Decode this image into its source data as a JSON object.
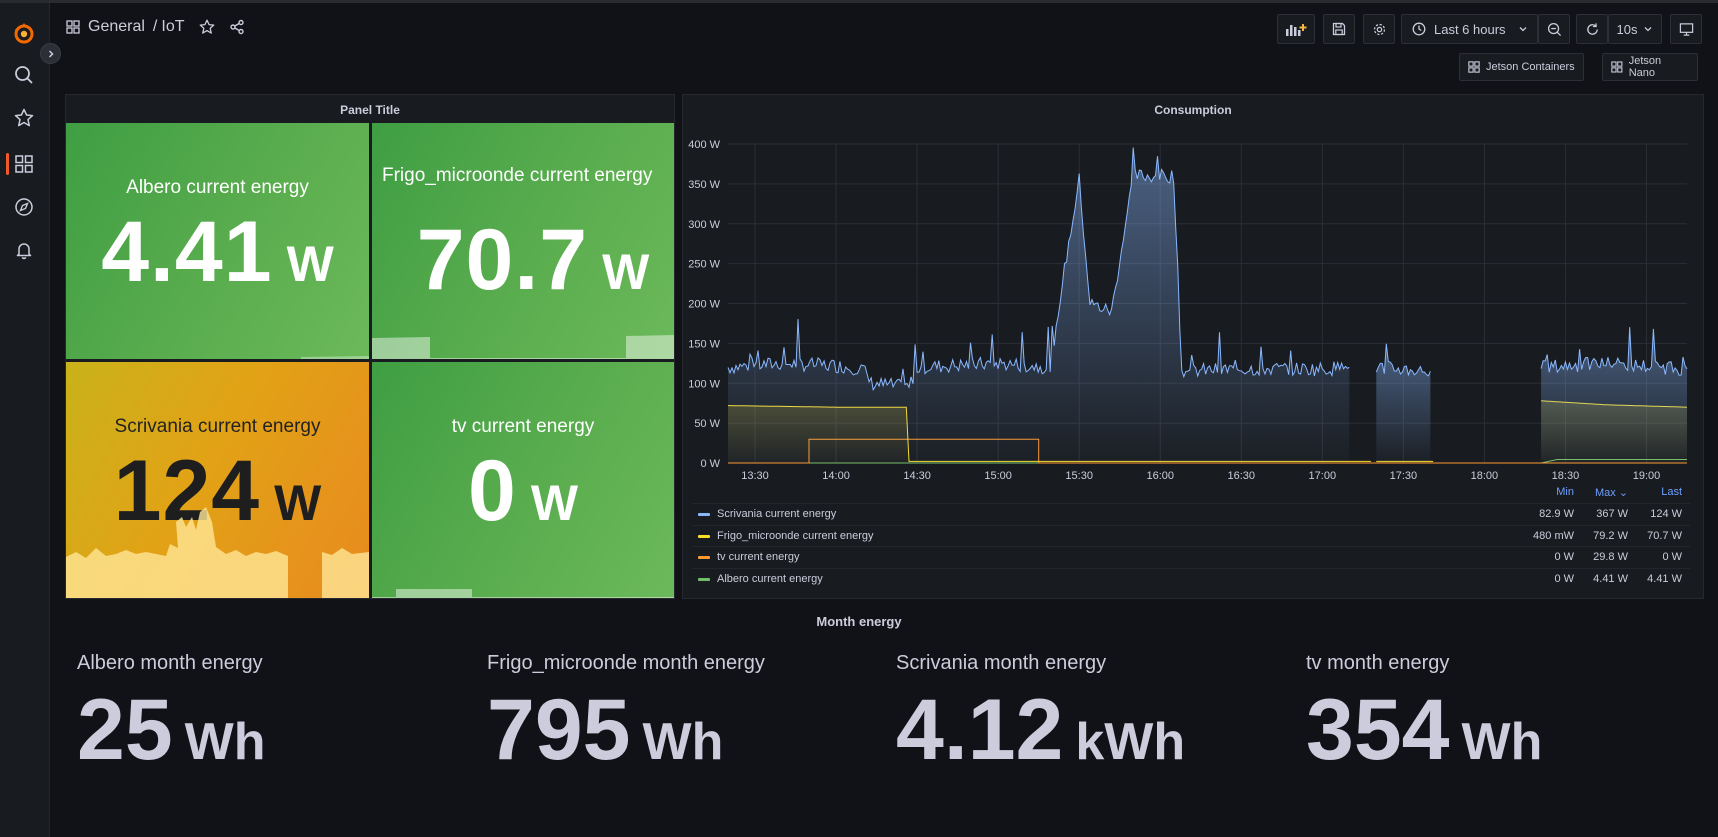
{
  "nav": {
    "folder": "General",
    "separator": "/",
    "dashboard": "IoT",
    "time_range": "Last 6 hours",
    "refresh": "10s"
  },
  "links": [
    {
      "label": "Jetson Containers"
    },
    {
      "label": "Jetson Nano"
    }
  ],
  "panel_title": "Panel Title",
  "tiles": [
    {
      "title": "Albero current energy",
      "value": "4.41",
      "unit": "W",
      "bg": "#4aa74a"
    },
    {
      "title": "Frigo_microonde current energy",
      "value": "70.7",
      "unit": "W",
      "bg": "#4aa74a"
    },
    {
      "title": "Scrivania current energy",
      "value": "124",
      "unit": "W",
      "bg": "#d89b1a"
    },
    {
      "title": "tv current energy",
      "value": "0",
      "unit": "W",
      "bg": "#4aa74a"
    }
  ],
  "consumption": {
    "title": "Consumption",
    "legend_headers": {
      "min": "Min",
      "max": "Max",
      "last": "Last"
    },
    "legend": [
      {
        "name": "Scrivania current energy",
        "color": "#8ab8ff",
        "min": "82.9 W",
        "max": "367 W",
        "last": "124 W"
      },
      {
        "name": "Frigo_microonde current energy",
        "color": "#fade2a",
        "min": "480 mW",
        "max": "79.2 W",
        "last": "70.7 W"
      },
      {
        "name": "tv current energy",
        "color": "#ff9830",
        "min": "0 W",
        "max": "29.8 W",
        "last": "0 W"
      },
      {
        "name": "Albero current energy",
        "color": "#73bf69",
        "min": "0 W",
        "max": "4.41 W",
        "last": "4.41 W"
      }
    ]
  },
  "chart_data": {
    "type": "line",
    "title": "Consumption",
    "y_ticks": [
      "0 W",
      "50 W",
      "100 W",
      "150 W",
      "200 W",
      "250 W",
      "300 W",
      "350 W",
      "400 W"
    ],
    "x_ticks": [
      "13:30",
      "14:00",
      "14:30",
      "15:00",
      "15:30",
      "16:00",
      "16:30",
      "17:00",
      "17:30",
      "18:00",
      "18:30",
      "19:00"
    ],
    "ylim": [
      0,
      400
    ],
    "grid": true,
    "series": [
      {
        "name": "Scrivania current energy",
        "color": "#8ab8ff",
        "points": [
          [
            "13:20",
            120
          ],
          [
            "13:40",
            125
          ],
          [
            "14:00",
            122
          ],
          [
            "14:10",
            118
          ],
          [
            "14:13",
            100
          ],
          [
            "14:27",
            95
          ],
          [
            "14:30",
            120
          ],
          [
            "15:00",
            125
          ],
          [
            "15:20",
            120
          ],
          [
            "15:23",
            210
          ],
          [
            "15:30",
            355
          ],
          [
            "15:34",
            200
          ],
          [
            "15:42",
            190
          ],
          [
            "15:50",
            360
          ],
          [
            "16:05",
            360
          ],
          [
            "16:08",
            115
          ],
          [
            "16:30",
            118
          ],
          [
            "17:00",
            118
          ],
          [
            "17:10",
            120
          ],
          [
            "17:18",
            null
          ],
          [
            "17:20",
            120
          ],
          [
            "17:40",
            115
          ],
          [
            "17:41",
            null
          ],
          [
            "18:20",
            null
          ],
          [
            "18:21",
            120
          ],
          [
            "18:45",
            125
          ],
          [
            "19:15",
            118
          ]
        ]
      },
      {
        "name": "Frigo_microonde current energy",
        "color": "#fade2a",
        "points": [
          [
            "13:20",
            72
          ],
          [
            "14:00",
            70
          ],
          [
            "14:26",
            70
          ],
          [
            "14:27",
            2
          ],
          [
            "17:18",
            2
          ],
          [
            "17:18",
            null
          ],
          [
            "17:20",
            2
          ],
          [
            "17:41",
            2
          ],
          [
            "17:41",
            null
          ],
          [
            "18:20",
            null
          ],
          [
            "18:21",
            78
          ],
          [
            "18:45",
            73
          ],
          [
            "19:15",
            70
          ]
        ]
      },
      {
        "name": "tv current energy",
        "color": "#ff9830",
        "points": [
          [
            "13:20",
            0
          ],
          [
            "13:50",
            0
          ],
          [
            "13:50",
            29.8
          ],
          [
            "15:15",
            29.8
          ],
          [
            "15:15",
            0
          ],
          [
            "17:18",
            0
          ],
          [
            "17:20",
            0
          ],
          [
            "17:41",
            0
          ],
          [
            "18:21",
            0
          ],
          [
            "19:15",
            0
          ]
        ]
      },
      {
        "name": "Albero current energy",
        "color": "#73bf69",
        "points": [
          [
            "13:20",
            0
          ],
          [
            "17:18",
            0
          ],
          [
            "18:21",
            0
          ],
          [
            "18:27",
            4.4
          ],
          [
            "19:15",
            4.41
          ]
        ]
      }
    ]
  },
  "month": {
    "title": "Month energy",
    "stats": [
      {
        "label": "Albero month energy",
        "value": "25",
        "unit": "Wh"
      },
      {
        "label": "Frigo_microonde month energy",
        "value": "795",
        "unit": "Wh"
      },
      {
        "label": "Scrivania month energy",
        "value": "4.12",
        "unit": "kWh"
      },
      {
        "label": "tv month energy",
        "value": "354",
        "unit": "Wh"
      }
    ]
  }
}
